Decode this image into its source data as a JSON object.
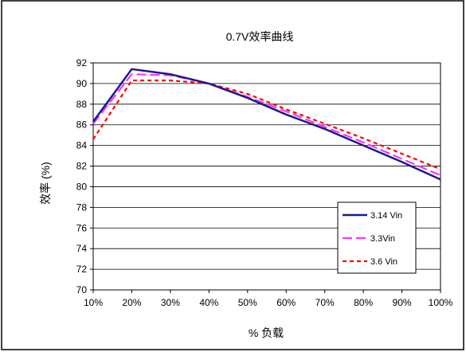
{
  "chart_data": {
    "type": "line",
    "title": "0.7V效率曲线",
    "xlabel": "% 负载",
    "ylabel": "效率 (%)",
    "categories": [
      "10%",
      "20%",
      "30%",
      "40%",
      "50%",
      "60%",
      "70%",
      "80%",
      "90%",
      "100%"
    ],
    "ylim": [
      70,
      92
    ],
    "yticks": [
      "70",
      "72",
      "74",
      "76",
      "78",
      "80",
      "82",
      "84",
      "86",
      "88",
      "90",
      "92"
    ],
    "grid": true,
    "legend_position": "bottom-right",
    "series": [
      {
        "name": "3.14 Vin",
        "color": "#1a1a8c",
        "dash": "solid",
        "values": [
          86.3,
          91.4,
          90.9,
          90.0,
          88.6,
          87.0,
          85.6,
          84.0,
          82.4,
          80.7
        ]
      },
      {
        "name": "3.3Vin",
        "color": "#ff33ff",
        "dash": "longdash",
        "values": [
          86.1,
          90.9,
          90.8,
          90.0,
          88.7,
          87.3,
          85.8,
          84.3,
          82.7,
          81.1
        ]
      },
      {
        "name": "3.6 Vin",
        "color": "#ff0000",
        "dash": "dash",
        "values": [
          84.6,
          90.3,
          90.3,
          90.0,
          89.0,
          87.5,
          86.1,
          84.7,
          83.2,
          81.7
        ]
      }
    ]
  }
}
